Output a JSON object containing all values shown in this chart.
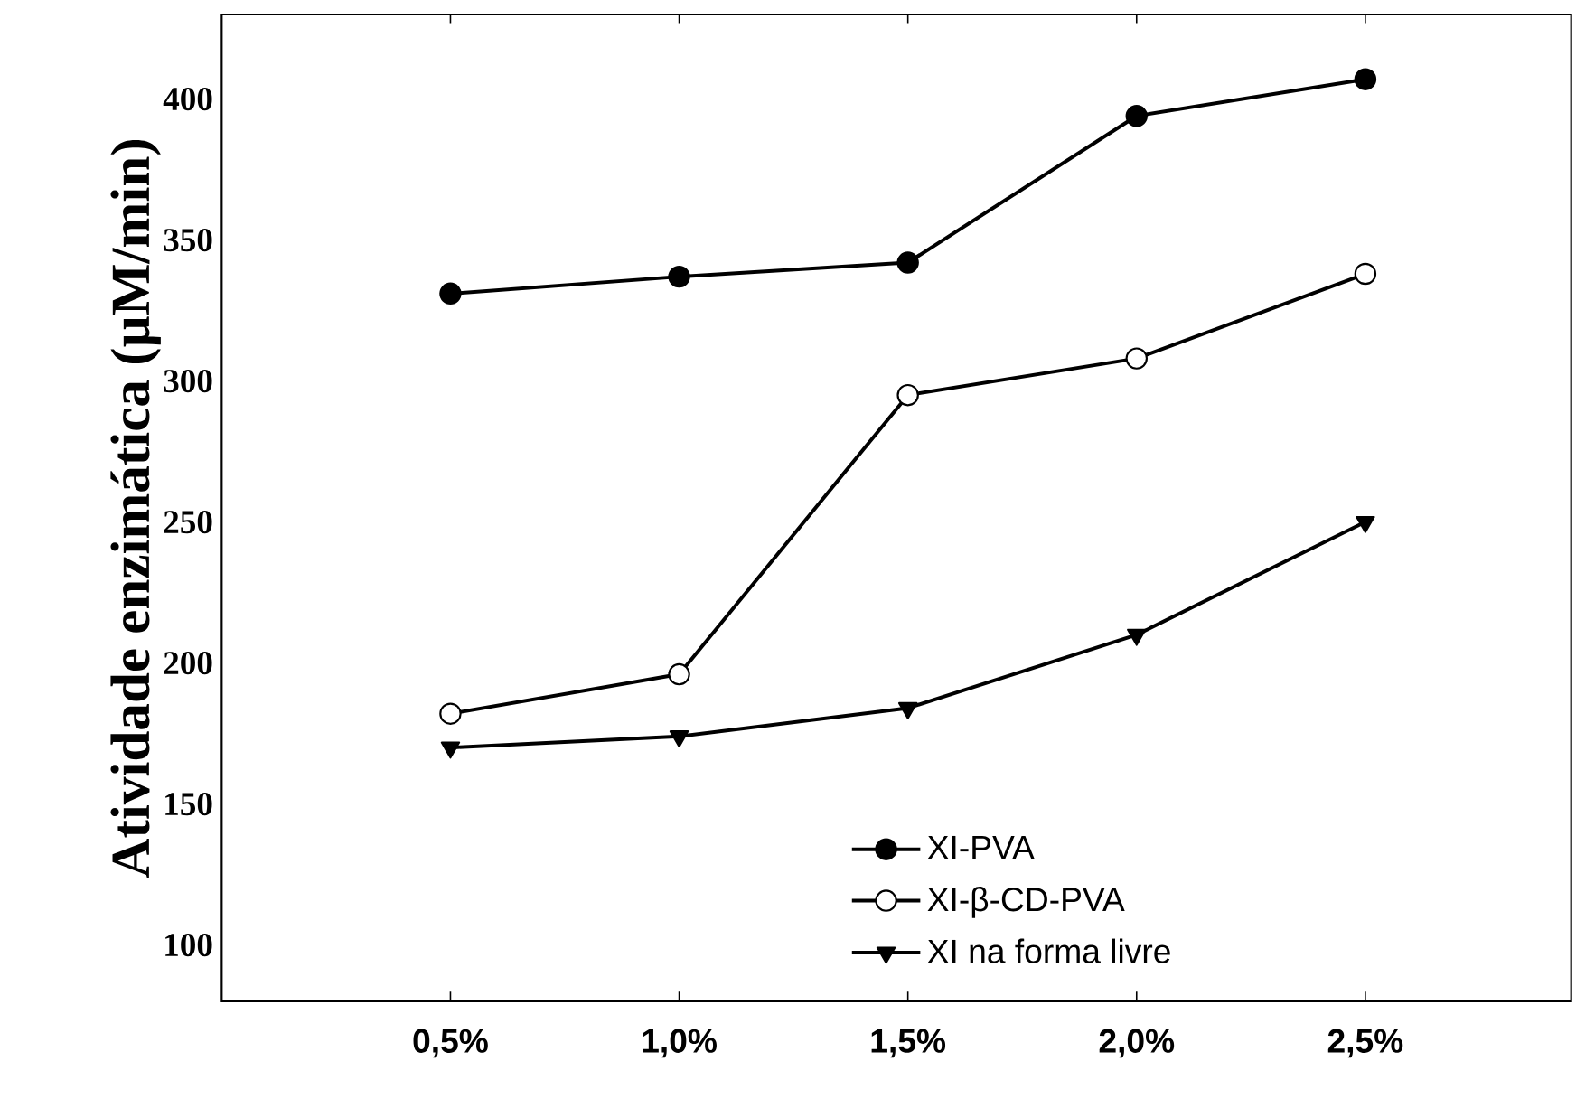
{
  "chart_data": {
    "type": "line",
    "ylabel": "Atividade enzimática (µM/min)",
    "categories": [
      "0,5%",
      "1,0%",
      "1,5%",
      "2,0%",
      "2,5%"
    ],
    "series": [
      {
        "name": "XI-PVA",
        "color": "#000000",
        "marker": "circle",
        "values": [
          331,
          337,
          342,
          394,
          407
        ]
      },
      {
        "name": "XI-β-CD-PVA",
        "color": "#000000",
        "marker": "circle-open",
        "values": [
          182,
          196,
          295,
          308,
          338
        ]
      },
      {
        "name": "XI na forma livre",
        "color": "#000000",
        "marker": "triangle",
        "values": [
          170,
          174,
          184,
          210,
          250
        ]
      }
    ],
    "ylim": [
      80,
      430
    ],
    "yticks": [
      100,
      150,
      200,
      250,
      300,
      350,
      400
    ],
    "legend": "bottom",
    "grid": false,
    "line_style": "solid"
  }
}
